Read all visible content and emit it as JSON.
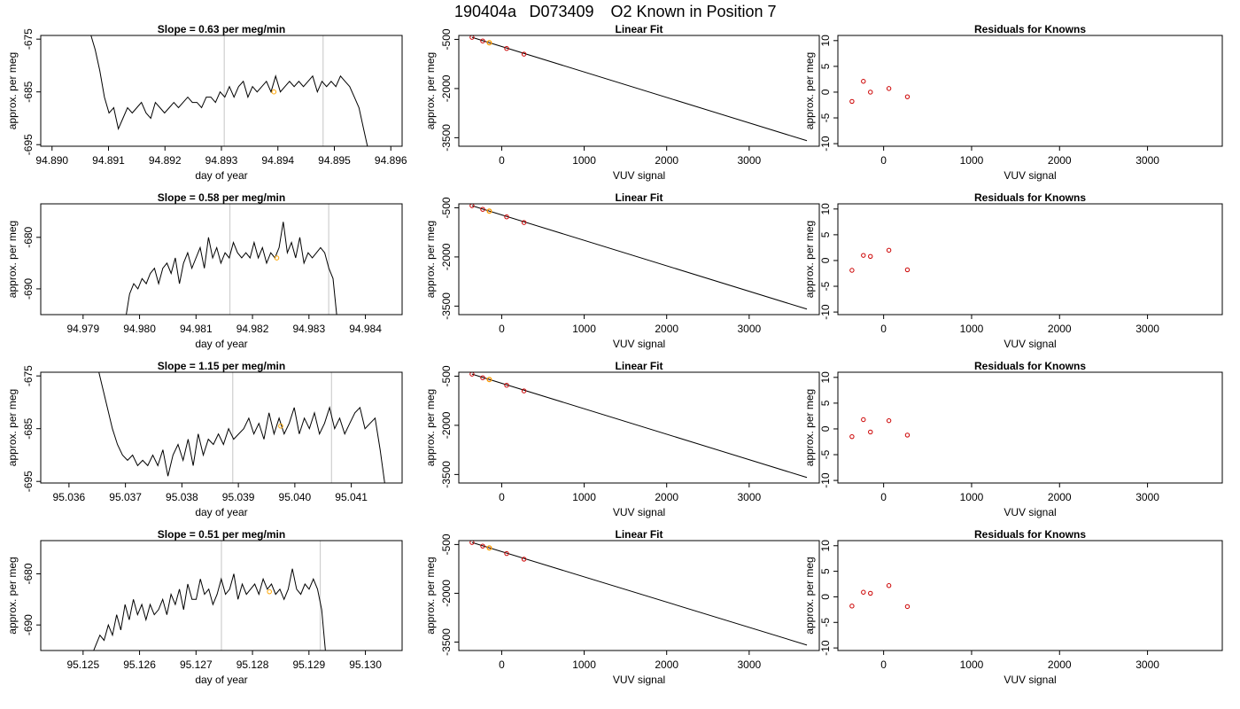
{
  "page": {
    "title_run": "190404a",
    "title_id": "D073409",
    "title_desc": "O2 Known in Position  7"
  },
  "chart_data": [
    {
      "type": "line",
      "title": "Slope =  0.63  per meg/min",
      "xlabel": "day of year",
      "ylabel": "approx. per meg",
      "xlim": [
        94.8898,
        94.8962
      ],
      "ylim": [
        -695.3,
        -674.3
      ],
      "xticks": [
        94.89,
        94.891,
        94.892,
        94.893,
        94.894,
        94.895,
        94.896
      ],
      "xtick_labels": [
        "94.890",
        "94.891",
        "94.892",
        "94.893",
        "94.894",
        "94.895",
        "94.896"
      ],
      "yticks": [
        -675,
        -685,
        -695
      ],
      "ytick_labels": [
        "-675",
        "-685",
        "-695"
      ],
      "vlines": [
        94.89305,
        94.8948
      ],
      "marker": {
        "x": 94.89393,
        "y": -685.0,
        "color": "#ffa500"
      },
      "series": [
        {
          "color": "#000000",
          "x_start": 94.8906,
          "x_end": 94.8956,
          "y": [
            -674,
            -674,
            -677,
            -681,
            -686,
            -689,
            -688,
            -692,
            -690,
            -688,
            -689,
            -688,
            -687,
            -689,
            -690,
            -687,
            -688,
            -689,
            -688,
            -687,
            -688,
            -687,
            -686,
            -687,
            -687,
            -688,
            -686,
            -686,
            -687,
            -685,
            -686,
            -684,
            -686,
            -684,
            -683,
            -686,
            -684,
            -685,
            -684,
            -683,
            -685,
            -682,
            -685,
            -684,
            -683,
            -684,
            -683,
            -684,
            -683,
            -682,
            -685,
            -683,
            -684,
            -683,
            -684,
            -682,
            -683,
            -684,
            -686,
            -688,
            -692,
            -696
          ]
        }
      ]
    },
    {
      "type": "line",
      "title": "Linear Fit",
      "xlabel": "VUV signal",
      "ylabel": "approx. per meg",
      "xlim": [
        -520,
        3850
      ],
      "ylim": [
        -3760,
        -380
      ],
      "xticks": [
        0,
        1000,
        2000,
        3000
      ],
      "xtick_labels": [
        "0",
        "1000",
        "2000",
        "3000"
      ],
      "yticks": [
        -500,
        -2000,
        -3500
      ],
      "ytick_labels": [
        "-500",
        "-2000",
        "-3500"
      ],
      "line": {
        "x": [
          -360,
          3700
        ],
        "y": [
          -438,
          -3592
        ]
      },
      "points": {
        "x": [
          -360,
          -230,
          -150,
          60,
          270
        ],
        "y": [
          -438,
          -548,
          -602,
          -778,
          -950
        ],
        "color": "#cc0000"
      },
      "highlight": {
        "x": -150,
        "y": -604,
        "color": "#ffa500"
      }
    },
    {
      "type": "scatter",
      "title": "Residuals for Knowns",
      "xlabel": "VUV signal",
      "ylabel": "approx. per meg",
      "xlim": [
        -520,
        3850
      ],
      "ylim": [
        -10.5,
        11
      ],
      "xticks": [
        0,
        1000,
        2000,
        3000
      ],
      "xtick_labels": [
        "0",
        "1000",
        "2000",
        "3000"
      ],
      "yticks": [
        10,
        5,
        0,
        -5,
        -10
      ],
      "ytick_labels": [
        "10",
        "5",
        "0",
        "-5",
        "-10"
      ],
      "points": {
        "x": [
          -360,
          -230,
          -150,
          60,
          270
        ],
        "y": [
          -1.8,
          2.1,
          0.0,
          0.7,
          -0.9
        ],
        "color": "#cc0000"
      }
    },
    {
      "type": "line",
      "title": "Slope =  0.58  per meg/min",
      "xlabel": "day of year",
      "ylabel": "approx. per meg",
      "xlim": [
        94.97825,
        94.98465
      ],
      "ylim": [
        -695,
        -673.5
      ],
      "xticks": [
        94.979,
        94.98,
        94.981,
        94.982,
        94.983,
        94.984
      ],
      "xtick_labels": [
        "94.979",
        "94.980",
        "94.981",
        "94.982",
        "94.983",
        "94.984"
      ],
      "yticks": [
        -680,
        -690
      ],
      "ytick_labels": [
        "-680",
        "-690"
      ],
      "vlines": [
        94.9816,
        94.98335
      ],
      "marker": {
        "x": 94.98243,
        "y": -684.0,
        "color": "#ffa500"
      },
      "series": [
        {
          "color": "#000000",
          "x_start": 94.97975,
          "x_end": 94.9835,
          "y": [
            -696,
            -691,
            -689,
            -690,
            -688,
            -689,
            -687,
            -686,
            -689,
            -686,
            -685,
            -687,
            -684,
            -689,
            -685,
            -683,
            -686,
            -684,
            -682,
            -686,
            -680,
            -684,
            -682,
            -685,
            -683,
            -684,
            -681,
            -683,
            -684,
            -683,
            -684,
            -681,
            -684,
            -682,
            -685,
            -683,
            -684,
            -682,
            -677,
            -683,
            -681,
            -684,
            -680,
            -685,
            -683,
            -684,
            -683,
            -682,
            -683,
            -686,
            -688,
            -696
          ]
        }
      ]
    },
    {
      "type": "line",
      "title": "Linear Fit",
      "xlabel": "VUV signal",
      "ylabel": "approx. per meg",
      "xlim": [
        -520,
        3850
      ],
      "ylim": [
        -3760,
        -380
      ],
      "xticks": [
        0,
        1000,
        2000,
        3000
      ],
      "xtick_labels": [
        "0",
        "1000",
        "2000",
        "3000"
      ],
      "yticks": [
        -500,
        -2000,
        -3500
      ],
      "ytick_labels": [
        "-500",
        "-2000",
        "-3500"
      ],
      "line": {
        "x": [
          -360,
          3700
        ],
        "y": [
          -438,
          -3592
        ]
      },
      "points": {
        "x": [
          -360,
          -230,
          -150,
          60,
          270
        ],
        "y": [
          -438,
          -548,
          -602,
          -778,
          -950
        ],
        "color": "#cc0000"
      },
      "highlight": {
        "x": -150,
        "y": -604,
        "color": "#ffa500"
      }
    },
    {
      "type": "scatter",
      "title": "Residuals for Knowns",
      "xlabel": "VUV signal",
      "ylabel": "approx. per meg",
      "xlim": [
        -520,
        3850
      ],
      "ylim": [
        -10.5,
        11
      ],
      "xticks": [
        0,
        1000,
        2000,
        3000
      ],
      "xtick_labels": [
        "0",
        "1000",
        "2000",
        "3000"
      ],
      "yticks": [
        10,
        5,
        0,
        -5,
        -10
      ],
      "ytick_labels": [
        "10",
        "5",
        "0",
        "-5",
        "-10"
      ],
      "points": {
        "x": [
          -360,
          -230,
          -150,
          60,
          270
        ],
        "y": [
          -1.9,
          1.0,
          0.8,
          2.0,
          -1.8
        ],
        "color": "#cc0000"
      }
    },
    {
      "type": "line",
      "title": "Slope =  1.15  per meg/min",
      "xlabel": "day of year",
      "ylabel": "approx. per meg",
      "xlim": [
        95.0355,
        95.0419
      ],
      "ylim": [
        -695.3,
        -674.3
      ],
      "xticks": [
        95.036,
        95.037,
        95.038,
        95.039,
        95.04,
        95.041
      ],
      "xtick_labels": [
        "95.036",
        "95.037",
        "95.038",
        "95.039",
        "95.040",
        "95.041"
      ],
      "yticks": [
        -675,
        -685,
        -695
      ],
      "ytick_labels": [
        "-675",
        "-685",
        "-695"
      ],
      "vlines": [
        95.0389,
        95.04065
      ],
      "marker": {
        "x": 95.03975,
        "y": -684.5,
        "color": "#ffa500"
      },
      "series": [
        {
          "color": "#000000",
          "x_start": 95.0365,
          "x_end": 95.0416,
          "y": [
            -673,
            -677,
            -681,
            -685,
            -688,
            -690,
            -691,
            -690,
            -692,
            -691,
            -692,
            -690,
            -692,
            -689,
            -694,
            -690,
            -688,
            -691,
            -687,
            -692,
            -686,
            -690,
            -687,
            -688,
            -686,
            -688,
            -685,
            -687,
            -686,
            -685,
            -683,
            -686,
            -684,
            -687,
            -682,
            -686,
            -683,
            -686,
            -684,
            -681,
            -686,
            -683,
            -685,
            -682,
            -686,
            -684,
            -681,
            -685,
            -683,
            -686,
            -684,
            -682,
            -681,
            -685,
            -684,
            -683,
            -689,
            -696
          ]
        }
      ]
    },
    {
      "type": "line",
      "title": "Linear Fit",
      "xlabel": "VUV signal",
      "ylabel": "approx. per meg",
      "xlim": [
        -520,
        3850
      ],
      "ylim": [
        -3760,
        -380
      ],
      "xticks": [
        0,
        1000,
        2000,
        3000
      ],
      "xtick_labels": [
        "0",
        "1000",
        "2000",
        "3000"
      ],
      "yticks": [
        -500,
        -2000,
        -3500
      ],
      "ytick_labels": [
        "-500",
        "-2000",
        "-3500"
      ],
      "line": {
        "x": [
          -360,
          3700
        ],
        "y": [
          -438,
          -3592
        ]
      },
      "points": {
        "x": [
          -360,
          -230,
          -150,
          60,
          270
        ],
        "y": [
          -438,
          -548,
          -602,
          -778,
          -950
        ],
        "color": "#cc0000"
      },
      "highlight": {
        "x": -150,
        "y": -604,
        "color": "#ffa500"
      }
    },
    {
      "type": "scatter",
      "title": "Residuals for Knowns",
      "xlabel": "VUV signal",
      "ylabel": "approx. per meg",
      "xlim": [
        -520,
        3850
      ],
      "ylim": [
        -10.5,
        11
      ],
      "xticks": [
        0,
        1000,
        2000,
        3000
      ],
      "xtick_labels": [
        "0",
        "1000",
        "2000",
        "3000"
      ],
      "yticks": [
        10,
        5,
        0,
        -5,
        -10
      ],
      "ytick_labels": [
        "10",
        "5",
        "0",
        "-5",
        "-10"
      ],
      "points": {
        "x": [
          -360,
          -230,
          -150,
          60,
          270
        ],
        "y": [
          -1.5,
          1.8,
          -0.6,
          1.6,
          -1.2
        ],
        "color": "#cc0000"
      }
    },
    {
      "type": "line",
      "title": "Slope =  0.51  per meg/min",
      "xlabel": "day of year",
      "ylabel": "approx. per meg",
      "xlim": [
        95.12425,
        95.13065
      ],
      "ylim": [
        -695,
        -673.5
      ],
      "xticks": [
        95.125,
        95.126,
        95.127,
        95.128,
        95.129,
        95.13
      ],
      "xtick_labels": [
        "95.125",
        "95.126",
        "95.127",
        "95.128",
        "95.129",
        "95.130"
      ],
      "yticks": [
        -680,
        -690
      ],
      "ytick_labels": [
        "-680",
        "-690"
      ],
      "vlines": [
        95.12745,
        95.1292
      ],
      "marker": {
        "x": 95.1283,
        "y": -683.5,
        "color": "#ffa500"
      },
      "series": [
        {
          "color": "#000000",
          "x_start": 95.12515,
          "x_end": 95.1293,
          "y": [
            -696,
            -694,
            -692,
            -693,
            -690,
            -692,
            -688,
            -691,
            -686,
            -689,
            -685,
            -688,
            -686,
            -689,
            -686,
            -688,
            -687,
            -685,
            -688,
            -684,
            -686,
            -683,
            -687,
            -682,
            -685,
            -685,
            -681,
            -684,
            -683,
            -686,
            -684,
            -681,
            -684,
            -683,
            -680,
            -685,
            -682,
            -684,
            -683,
            -682,
            -684,
            -681,
            -683,
            -682,
            -684,
            -683,
            -685,
            -683,
            -679,
            -683,
            -684,
            -682,
            -683,
            -681,
            -683,
            -687,
            -696
          ]
        }
      ]
    },
    {
      "type": "line",
      "title": "Linear Fit",
      "xlabel": "VUV signal",
      "ylabel": "approx. per meg",
      "xlim": [
        -520,
        3850
      ],
      "ylim": [
        -3760,
        -380
      ],
      "xticks": [
        0,
        1000,
        2000,
        3000
      ],
      "xtick_labels": [
        "0",
        "1000",
        "2000",
        "3000"
      ],
      "yticks": [
        -500,
        -2000,
        -3500
      ],
      "ytick_labels": [
        "-500",
        "-2000",
        "-3500"
      ],
      "line": {
        "x": [
          -360,
          3700
        ],
        "y": [
          -438,
          -3592
        ]
      },
      "points": {
        "x": [
          -360,
          -230,
          -150,
          60,
          270
        ],
        "y": [
          -438,
          -548,
          -602,
          -778,
          -950
        ],
        "color": "#cc0000"
      },
      "highlight": {
        "x": -150,
        "y": -604,
        "color": "#ffa500"
      }
    },
    {
      "type": "scatter",
      "title": "Residuals for Knowns",
      "xlabel": "VUV signal",
      "ylabel": "approx. per meg",
      "xlim": [
        -520,
        3850
      ],
      "ylim": [
        -10.5,
        11
      ],
      "xticks": [
        0,
        1000,
        2000,
        3000
      ],
      "xtick_labels": [
        "0",
        "1000",
        "2000",
        "3000"
      ],
      "yticks": [
        10,
        5,
        0,
        -5,
        -10
      ],
      "ytick_labels": [
        "10",
        "5",
        "0",
        "-5",
        "-10"
      ],
      "points": {
        "x": [
          -360,
          -230,
          -150,
          60,
          270
        ],
        "y": [
          -1.8,
          0.9,
          0.7,
          2.2,
          -1.9
        ],
        "color": "#cc0000"
      }
    }
  ]
}
